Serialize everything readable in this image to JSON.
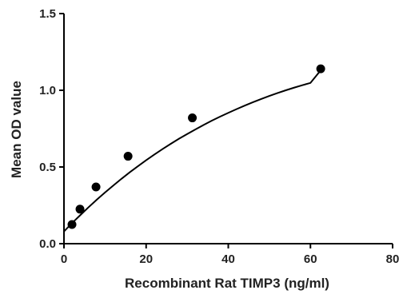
{
  "chart_data": {
    "type": "scatter",
    "title": "",
    "xlabel": "Recombinant Rat TIMP3 (ng/ml)",
    "ylabel": "Mean OD value",
    "xlim": [
      0,
      80
    ],
    "ylim": [
      0,
      1.5
    ],
    "x_ticks": [
      0,
      20,
      40,
      60,
      80
    ],
    "x_tick_labels": [
      "0",
      "20",
      "40",
      "60",
      "80"
    ],
    "y_ticks": [
      0,
      0.5,
      1.0,
      1.5
    ],
    "y_tick_labels": [
      "0.0",
      "0.5",
      "1.0",
      "1.5"
    ],
    "grid": false,
    "legend": "none",
    "points": {
      "x": [
        1.95,
        3.9,
        7.8,
        15.6,
        31.25,
        62.5
      ],
      "y": [
        0.125,
        0.225,
        0.37,
        0.57,
        0.82,
        1.14
      ]
    },
    "fit_curve": {
      "x": [
        0,
        2,
        4,
        6,
        8,
        10,
        12,
        14,
        16,
        18,
        20,
        22,
        24,
        26,
        28,
        30,
        32,
        34,
        36,
        38,
        40,
        42,
        44,
        46,
        48,
        50,
        52,
        54,
        56,
        58,
        60,
        62.5
      ],
      "y": [
        0.08,
        0.135,
        0.187,
        0.238,
        0.287,
        0.334,
        0.379,
        0.423,
        0.465,
        0.505,
        0.544,
        0.581,
        0.617,
        0.651,
        0.684,
        0.715,
        0.745,
        0.774,
        0.802,
        0.828,
        0.853,
        0.877,
        0.9,
        0.922,
        0.943,
        0.963,
        0.982,
        1.0,
        1.017,
        1.033,
        1.048,
        1.13
      ]
    },
    "colors": {
      "marker": "#000000",
      "curve": "#000000",
      "axis": "#000000"
    }
  }
}
